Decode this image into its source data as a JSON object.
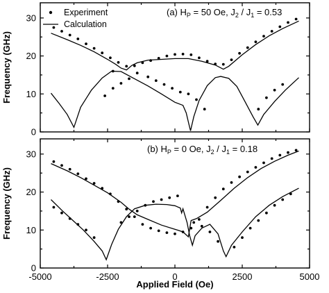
{
  "chart_data": [
    {
      "type": "scatter",
      "panel": "a",
      "annotation": "(a) H_P = 50 Oe, J_2 / J_1 = 0.53",
      "annotation_parts": {
        "a1": "(a) H",
        "a2": "P",
        "a3": " = 50 Oe, J",
        "a4": "2",
        "a5": " / J",
        "a6": "1",
        "a7": " = 0.53"
      },
      "legend": {
        "placement": "top-left",
        "items": [
          {
            "label": "Experiment",
            "marker": "dot"
          },
          {
            "label": "Calculation",
            "marker": "line"
          }
        ]
      },
      "ylabel": "Frequency (GHz)",
      "xlim": [
        -5000,
        5000
      ],
      "ylim": [
        0,
        34
      ],
      "yticks": [
        "0",
        "10",
        "20",
        "30"
      ],
      "yticks_values": [
        0,
        10,
        20,
        30
      ],
      "series": [
        {
          "name": "Experiment",
          "kind": "points",
          "points": [
            [
              -4500,
              27.5
            ],
            [
              -4200,
              26.5
            ],
            [
              -3900,
              25.5
            ],
            [
              -3600,
              24.5
            ],
            [
              -3300,
              23.2
            ],
            [
              -3000,
              22
            ],
            [
              -2700,
              20.8
            ],
            [
              -2400,
              19.5
            ],
            [
              -2100,
              18.3
            ],
            [
              -1800,
              17.3
            ],
            [
              -1500,
              17.4
            ],
            [
              -1200,
              18.2
            ],
            [
              -900,
              18.8
            ],
            [
              -600,
              19.4
            ],
            [
              -300,
              20
            ],
            [
              0,
              20.4
            ],
            [
              300,
              20.5
            ],
            [
              600,
              20.3
            ],
            [
              900,
              19.5
            ],
            [
              1200,
              18.6
            ],
            [
              1500,
              17.9
            ],
            [
              1800,
              17.8
            ],
            [
              2100,
              19
            ],
            [
              2400,
              20.7
            ],
            [
              2700,
              22.2
            ],
            [
              3000,
              23.7
            ],
            [
              3300,
              25.2
            ],
            [
              3600,
              26.5
            ],
            [
              3900,
              27.7
            ],
            [
              4200,
              28.8
            ],
            [
              4500,
              29.7
            ],
            [
              -2600,
              9.5
            ],
            [
              -2300,
              11.5
            ],
            [
              -2000,
              12.8
            ],
            [
              -1700,
              14
            ],
            [
              -1400,
              15.5
            ],
            [
              -2300,
              16
            ],
            [
              -1000,
              14.5
            ],
            [
              -700,
              13.5
            ],
            [
              -400,
              12.5
            ],
            [
              -100,
              11.5
            ],
            [
              200,
              10.5
            ],
            [
              500,
              10
            ],
            [
              800,
              8.5
            ],
            [
              1100,
              6
            ],
            [
              3100,
              6
            ],
            [
              3400,
              9
            ],
            [
              3700,
              11
            ],
            [
              4000,
              12.5
            ]
          ]
        },
        {
          "name": "Calculation",
          "kind": "line",
          "segments": [
            [
              [
                -4600,
                26
              ],
              [
                -4000,
                24.3
              ],
              [
                -3500,
                22.8
              ],
              [
                -3000,
                21.1
              ],
              [
                -2500,
                19.1
              ],
              [
                -2200,
                17.8
              ],
              [
                -2000,
                16.8
              ],
              [
                -1800,
                16.3
              ],
              [
                -1600,
                17.5
              ],
              [
                -1400,
                18.2
              ],
              [
                -1000,
                18.9
              ],
              [
                -500,
                19.1
              ],
              [
                0,
                19.3
              ],
              [
                500,
                19.3
              ],
              [
                1000,
                18.6
              ],
              [
                1500,
                17.6
              ],
              [
                1800,
                16.5
              ],
              [
                2000,
                17.3
              ],
              [
                2500,
                20.3
              ],
              [
                3000,
                23
              ],
              [
                3500,
                25.3
              ],
              [
                4000,
                27.2
              ],
              [
                4600,
                29.2
              ]
            ],
            [
              [
                -4600,
                10.2
              ],
              [
                -4300,
                7.5
              ],
              [
                -4000,
                4.6
              ],
              [
                -3750,
                1.2
              ],
              [
                -3500,
                6.5
              ],
              [
                -3100,
                11
              ],
              [
                -2700,
                14.2
              ],
              [
                -2350,
                16
              ],
              [
                -2000,
                15.9
              ],
              [
                -1500,
                14
              ],
              [
                -1000,
                12.1
              ],
              [
                -500,
                10
              ],
              [
                0,
                7.8
              ],
              [
                300,
                7
              ],
              [
                420,
                5
              ],
              [
                520,
                2
              ],
              [
                580,
                0.3
              ],
              [
                700,
                4
              ],
              [
                900,
                8.3
              ],
              [
                1200,
                12.2
              ],
              [
                1500,
                14.3
              ],
              [
                1700,
                14.6
              ],
              [
                2000,
                14.1
              ],
              [
                2300,
                12
              ],
              [
                2600,
                8
              ],
              [
                2900,
                4
              ],
              [
                3080,
                1.8
              ],
              [
                3300,
                4.6
              ],
              [
                3700,
                8
              ],
              [
                4100,
                11
              ],
              [
                4600,
                14.3
              ]
            ]
          ]
        }
      ]
    },
    {
      "type": "scatter",
      "panel": "b",
      "annotation": "(b) H_P = 0 Oe, J_2 / J_1 = 0.18",
      "annotation_parts": {
        "b1": "(b) H",
        "b2": "P",
        "b3": " = 0 Oe, J",
        "b4": "2",
        "b5": " / J",
        "b6": "1",
        "b7": " = 0.18"
      },
      "xlabel": "Applied Field (Oe)",
      "ylabel": "Frequency (GHz)",
      "xlim": [
        -5000,
        5000
      ],
      "ylim": [
        0,
        34
      ],
      "xticks": [
        "-5000",
        "-2500",
        "0",
        "2500",
        "5000"
      ],
      "xticks_values": [
        -5000,
        -2500,
        0,
        2500,
        5000
      ],
      "yticks": [
        "0",
        "10",
        "20",
        "30"
      ],
      "yticks_values": [
        0,
        10,
        20,
        30
      ],
      "series": [
        {
          "name": "Experiment",
          "kind": "points",
          "points": [
            [
              -4500,
              28
            ],
            [
              -4200,
              27
            ],
            [
              -3900,
              26
            ],
            [
              -3600,
              24.8
            ],
            [
              -3300,
              23.5
            ],
            [
              -3000,
              22.3
            ],
            [
              -2700,
              21
            ],
            [
              -2400,
              19.5
            ],
            [
              -2100,
              17.5
            ],
            [
              -1800,
              15.5
            ],
            [
              -1500,
              13.5
            ],
            [
              -1200,
              11.5
            ],
            [
              -900,
              10.5
            ],
            [
              -600,
              9.8
            ],
            [
              -300,
              9.3
            ],
            [
              0,
              9
            ],
            [
              300,
              9.5
            ],
            [
              600,
              10.5
            ],
            [
              900,
              12.8
            ],
            [
              1200,
              16
            ],
            [
              1500,
              18.5
            ],
            [
              1800,
              20.8
            ],
            [
              2100,
              22.5
            ],
            [
              2400,
              24
            ],
            [
              2700,
              25.3
            ],
            [
              3000,
              26.5
            ],
            [
              3300,
              27.7
            ],
            [
              3600,
              28.8
            ],
            [
              3900,
              29.7
            ],
            [
              4200,
              30.4
            ],
            [
              4500,
              31
            ],
            [
              -4500,
              16
            ],
            [
              -4200,
              14.5
            ],
            [
              -3900,
              13
            ],
            [
              -3600,
              11.5
            ],
            [
              -3300,
              10
            ],
            [
              -3000,
              8
            ],
            [
              -2000,
              12
            ],
            [
              -1700,
              13.5
            ],
            [
              -1400,
              15
            ],
            [
              -1100,
              16.5
            ],
            [
              -800,
              17.5
            ],
            [
              -500,
              18
            ],
            [
              -200,
              18.5
            ],
            [
              100,
              19
            ],
            [
              700,
              12
            ],
            [
              1000,
              11
            ],
            [
              1300,
              9.5
            ],
            [
              1600,
              7
            ],
            [
              2200,
              5.5
            ],
            [
              2500,
              8
            ],
            [
              2800,
              10.5
            ],
            [
              3100,
              12.5
            ],
            [
              3400,
              14.5
            ],
            [
              3700,
              16.5
            ],
            [
              4000,
              18
            ],
            [
              4300,
              19.5
            ]
          ]
        },
        {
          "name": "Calculation",
          "kind": "line",
          "segments": [
            [
              [
                -4600,
                27.5
              ],
              [
                -4000,
                25.6
              ],
              [
                -3500,
                23.8
              ],
              [
                -3000,
                21.8
              ],
              [
                -2500,
                19.8
              ],
              [
                -2000,
                17.3
              ],
              [
                -1700,
                15.5
              ],
              [
                -1400,
                14
              ],
              [
                -1000,
                12.8
              ],
              [
                -500,
                11.3
              ],
              [
                0,
                10.2
              ],
              [
                300,
                9.5
              ],
              [
                500,
                8.2
              ],
              [
                600,
                12.5
              ],
              [
                800,
                13
              ],
              [
                1200,
                14.7
              ],
              [
                1700,
                17.8
              ],
              [
                2200,
                21
              ],
              [
                2700,
                23.8
              ],
              [
                3200,
                26.2
              ],
              [
                3700,
                28.1
              ],
              [
                4200,
                29.7
              ],
              [
                4600,
                30.8
              ]
            ],
            [
              [
                -4600,
                18
              ],
              [
                -4200,
                15.2
              ],
              [
                -3800,
                12.6
              ],
              [
                -3400,
                10
              ],
              [
                -3000,
                7
              ],
              [
                -2700,
                4.5
              ],
              [
                -2550,
                2.2
              ],
              [
                -2350,
                6.2
              ],
              [
                -2100,
                10.2
              ],
              [
                -1800,
                13.5
              ],
              [
                -1500,
                15.6
              ],
              [
                -1100,
                16.5
              ],
              [
                -700,
                16.8
              ],
              [
                -300,
                16.7
              ],
              [
                0,
                16.4
              ],
              [
                200,
                15.8
              ],
              [
                250,
                14.5
              ],
              [
                300,
                15.6
              ],
              [
                450,
                12
              ],
              [
                550,
                8.5
              ],
              [
                650,
                6
              ],
              [
                750,
                8.5
              ],
              [
                1000,
                10.5
              ],
              [
                1300,
                11.5
              ],
              [
                1600,
                9
              ],
              [
                1800,
                4.5
              ],
              [
                1900,
                3
              ],
              [
                2100,
                6
              ],
              [
                2500,
                9.5
              ],
              [
                3000,
                13.5
              ],
              [
                3500,
                16.5
              ],
              [
                4000,
                18.8
              ],
              [
                4600,
                21
              ]
            ]
          ]
        }
      ]
    }
  ]
}
